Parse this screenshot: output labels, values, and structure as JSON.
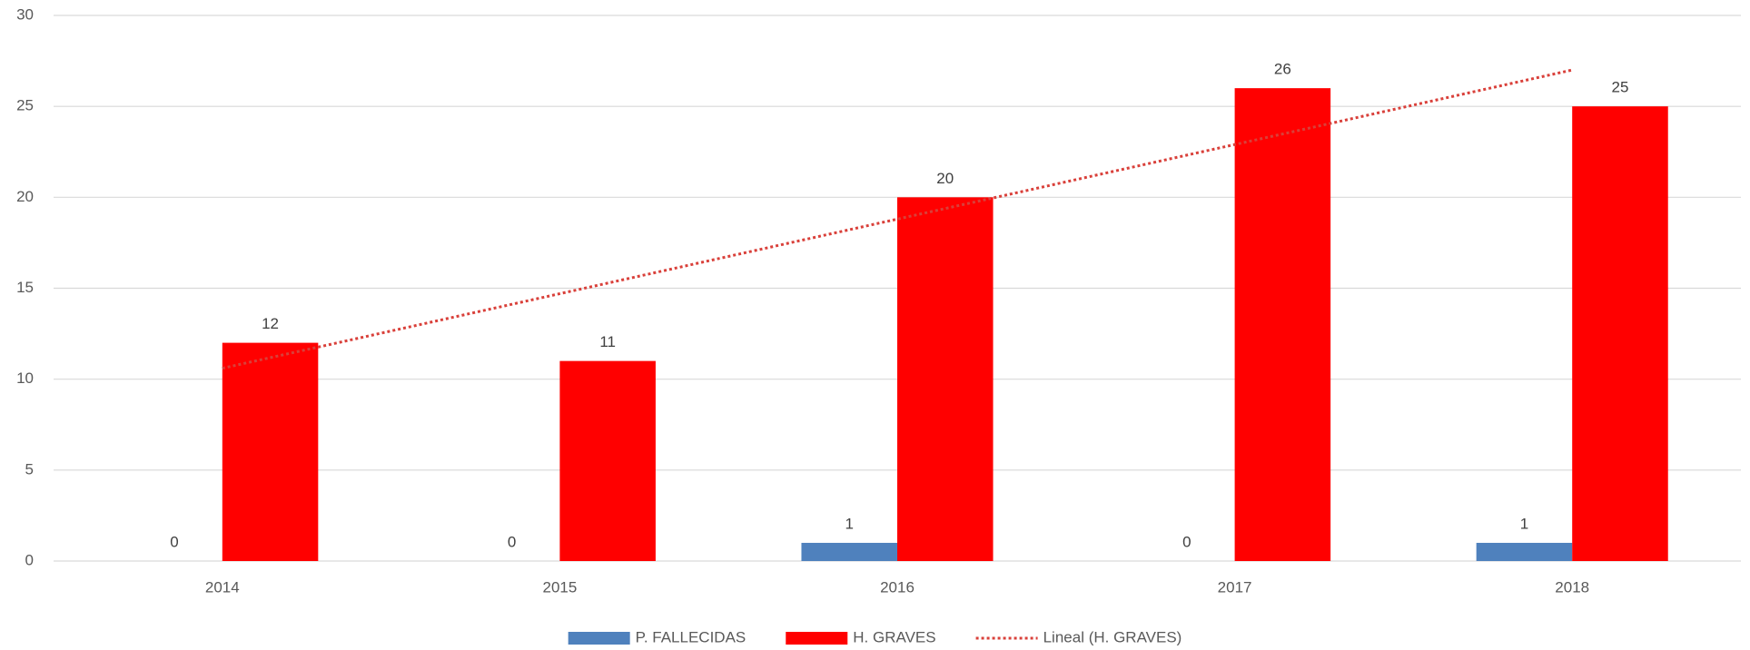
{
  "chart_data": {
    "type": "bar",
    "categories": [
      "2014",
      "2015",
      "2016",
      "2017",
      "2018"
    ],
    "series": [
      {
        "name": "P. FALLECIDAS",
        "color": "#4f81bd",
        "values": [
          0,
          0,
          1,
          0,
          1
        ]
      },
      {
        "name": "H. GRAVES",
        "color": "#ff0000",
        "values": [
          12,
          11,
          20,
          26,
          25
        ],
        "trendline": {
          "name": "Lineal (H. GRAVES)",
          "color": "#d9403a",
          "style": "dotted"
        }
      }
    ],
    "ylim": [
      0,
      30
    ],
    "yticks": [
      0,
      5,
      10,
      15,
      20,
      25,
      30
    ],
    "grid": true,
    "legend": "bottom"
  }
}
